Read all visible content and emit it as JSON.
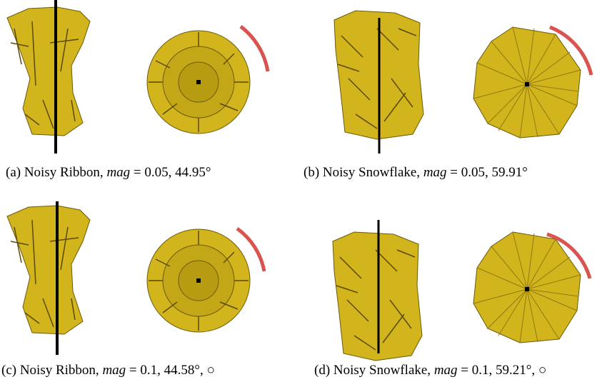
{
  "panels": [
    {
      "prefix": "(a) Noisy Ribbon,",
      "var": "mag",
      "suffix": "= 0.05, 44.95°"
    },
    {
      "prefix": "(b) Noisy Snowflake,",
      "var": "mag",
      "suffix": "= 0.05, 59.91°"
    },
    {
      "prefix": "(c) Noisy Ribbon,",
      "var": "mag",
      "suffix": "= 0.1, 44.58°, ○"
    },
    {
      "prefix": "(d) Noisy Snowflake,",
      "var": "mag",
      "suffix": "= 0.1, 59.21°, ○"
    }
  ]
}
